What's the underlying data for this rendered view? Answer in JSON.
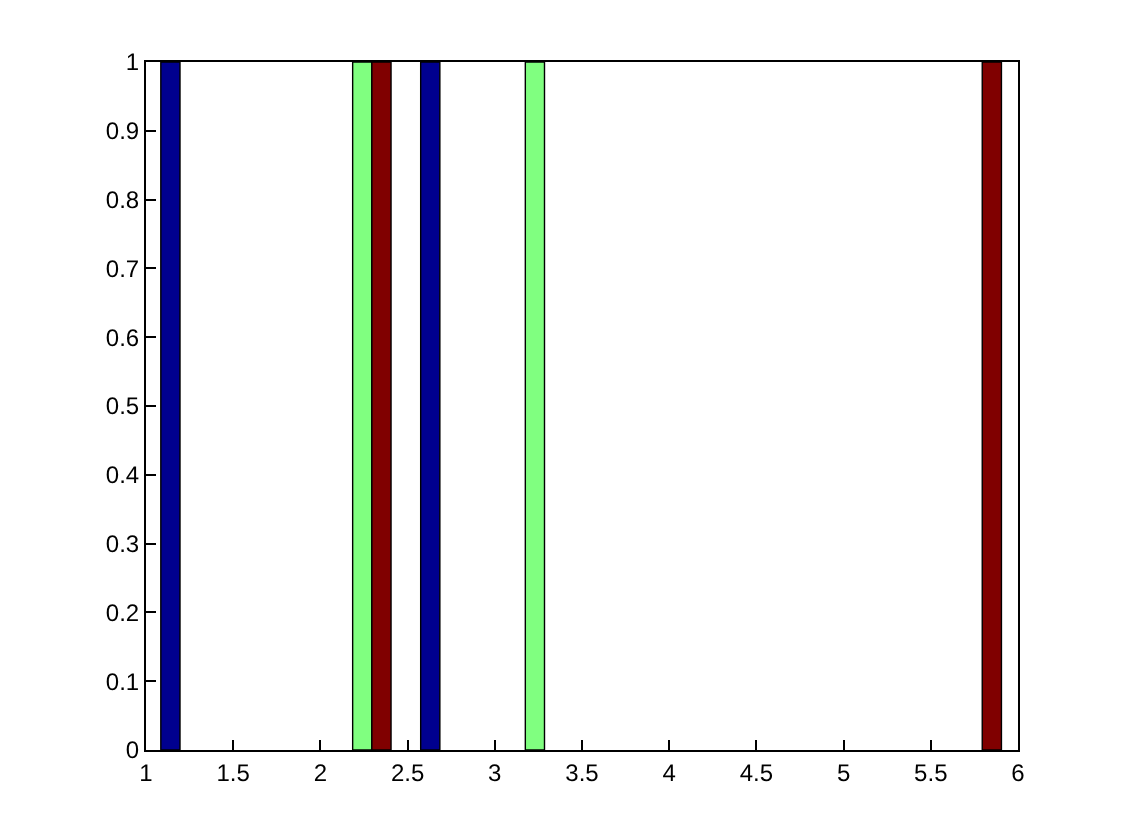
{
  "chart_data": {
    "type": "bar",
    "xlim": [
      1,
      6
    ],
    "ylim": [
      0,
      1
    ],
    "xticks": [
      1,
      1.5,
      2,
      2.5,
      3,
      3.5,
      4,
      4.5,
      5,
      5.5,
      6
    ],
    "yticks": [
      0,
      0.1,
      0.2,
      0.3,
      0.4,
      0.5,
      0.6,
      0.7,
      0.8,
      0.9,
      1
    ],
    "series": [
      {
        "color": "#00008f",
        "x": [
          1.14,
          2.63
        ],
        "values": [
          1,
          1
        ]
      },
      {
        "color": "#80ff80",
        "x": [
          2.24,
          3.23
        ],
        "values": [
          1,
          1
        ]
      },
      {
        "color": "#800000",
        "x": [
          2.35,
          5.85
        ],
        "values": [
          1,
          1
        ]
      }
    ]
  }
}
